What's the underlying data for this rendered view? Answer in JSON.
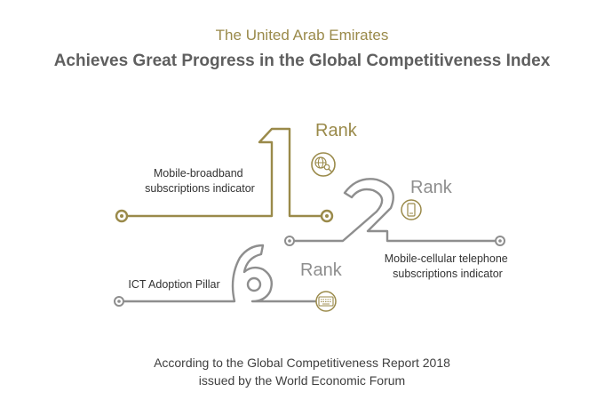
{
  "header": {
    "title": "The United Arab Emirates",
    "subtitle": "Achieves Great Progress in the Global Competitiveness Index"
  },
  "ranks": [
    {
      "rank": "1",
      "rank_word": "Rank",
      "indicator_line1": "Mobile-broadband",
      "indicator_line2": "subscriptions indicator",
      "icon": "globe-search-icon",
      "color": "#9a8a4a"
    },
    {
      "rank": "2",
      "rank_word": "Rank",
      "indicator_line1": "Mobile-cellular telephone",
      "indicator_line2": "subscriptions indicator",
      "icon": "mobile-phone-icon",
      "color": "#8e8e8e"
    },
    {
      "rank": "6",
      "rank_word": "Rank",
      "indicator_line1": "ICT Adoption Pillar",
      "icon": "keyboard-icon",
      "color": "#8e8e8e"
    }
  ],
  "footer": {
    "line1": "According to the Global Competitiveness Report 2018",
    "line2": "issued by the World Economic Forum"
  }
}
